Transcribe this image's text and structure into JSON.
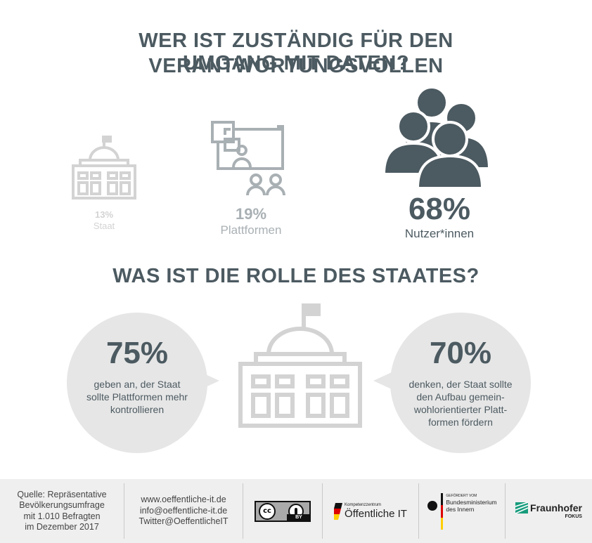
{
  "title": {
    "line1": "WER IST ZUSTÄNDIG FÜR DEN VERANTWORTUNGSVOLLEN",
    "line2": "UMGANG MIT DATEN?"
  },
  "responsibility": [
    {
      "percent": "13%",
      "label": "Staat",
      "value": 13,
      "icon": "government-building-icon",
      "color": "#d3d3d3"
    },
    {
      "percent": "19%",
      "label": "Plattformen",
      "value": 19,
      "icon": "platform-screen-icon",
      "color": "#a9b0b4"
    },
    {
      "percent": "68%",
      "label": "Nutzer*innen",
      "value": 68,
      "icon": "users-group-icon",
      "color": "#4c5a61"
    }
  ],
  "role_title": "WAS IST DIE ROLLE DES STAATES?",
  "role_stats": [
    {
      "percent": "75%",
      "text": "geben an, der Staat\nsollte Plattformen mehr\nkontrollieren"
    },
    {
      "percent": "70%",
      "text": "denken, der Staat sollte\nden Aufbau gemein-\nwohlorientierter Platt-\nformen fördern"
    }
  ],
  "footer": {
    "source": "Quelle: Repräsentative\nBevölkerungsumfrage\nmit 1.010 Befragten\nim Dezember 2017",
    "contact": "www.oeffentliche-it.de\ninfo@oeffentliche-it.de\nTwitter@OeffentlicheIT",
    "cc_by": "BY",
    "kompetenz_small": "Kompetenzzentrum",
    "kompetenz_big": "Öffentliche IT",
    "bmi_small": "GEFÖRDERT VOM",
    "bmi_line1": "Bundesministerium",
    "bmi_line2": "des Innern",
    "fraunhofer": "Fraunhofer",
    "fraunhofer_sub": "FOKUS"
  }
}
